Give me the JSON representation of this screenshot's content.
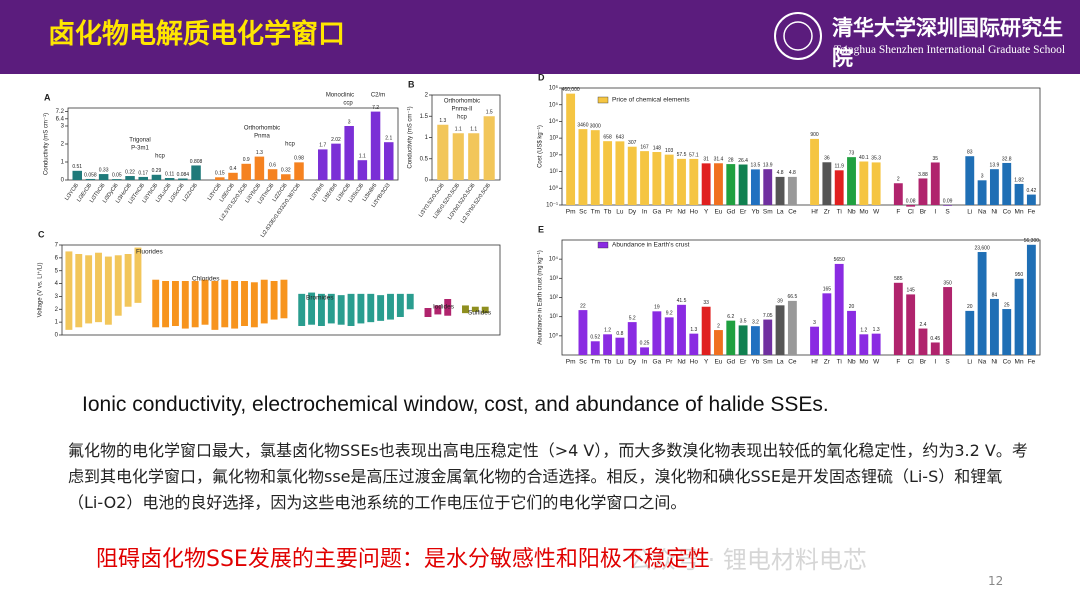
{
  "header": {
    "title": "卤化物电解质电化学窗口",
    "school_cn": "清华大学深圳国际研究生院",
    "school_en": "Tsinghua Shenzhen International Graduate School"
  },
  "chart_data": [
    {
      "type": "bar",
      "panel": "A",
      "ylabel": "Conductivity (mS cm⁻¹)",
      "categories": [
        "Li3YCl6",
        "Li3ErCl6",
        "Li3TbCl6",
        "Li3DyCl6",
        "Li3HoCl6",
        "Li3TmCl6",
        "Li3YbCl6",
        "Li3LuCl6",
        "Li3ScCl6",
        "Li2ZrCl6",
        "Li3YCl6",
        "Li3ErCl6",
        "Li2.5Y0.5Zr0.5Cl6",
        "Li3YbCl6",
        "Li3TmCl6",
        "Li2ZrCl6",
        "Li2.633Er0.633Zr0.367Cl6",
        "Li3YBr6",
        "Li3ErBr6",
        "Li3InCl6",
        "Li3ScCl6",
        "Li3InBr6",
        "Li3YBr3Cl3"
      ],
      "values": [
        0.51,
        0.058,
        0.33,
        0.05,
        0.22,
        0.17,
        0.29,
        0.11,
        0.084,
        0.808,
        0.15,
        0.4,
        0.9,
        1.3,
        0.6,
        0.32,
        0.98,
        1.7,
        2.02,
        3,
        1.1,
        7.2,
        2.1
      ],
      "colors": [
        "#1f7a7a",
        "#1f7a7a",
        "#1f7a7a",
        "#1f7a7a",
        "#1f7a7a",
        "#1f7a7a",
        "#1f7a7a",
        "#1f7a7a",
        "#1f7a7a",
        "#1f7a7a",
        "#f58220",
        "#f58220",
        "#f58220",
        "#f58220",
        "#f58220",
        "#f58220",
        "#f58220",
        "#7b2fd6",
        "#7b2fd6",
        "#7b2fd6",
        "#7b2fd6",
        "#7b2fd6",
        "#7b2fd6"
      ],
      "ylim": [
        0,
        7.6
      ],
      "ybreak": [
        3.2,
        6.4
      ],
      "yticks": [
        0,
        1,
        2,
        3,
        6.4,
        7.2
      ],
      "annotations": [
        "Trigonal",
        "P-3m1",
        "hcp",
        "Orthorhombic",
        "Pnma",
        "hcp",
        "Monoclinic",
        "C2/m",
        "ccp"
      ]
    },
    {
      "type": "bar",
      "panel": "B",
      "ylabel": "Conductivity (mS cm⁻¹)",
      "categories": [
        "Li3Y0.5Zr0.5Cl6",
        "Li3Er0.5Zr0.5Cl6",
        "Li3Yb0.5Zr0.5Cl6",
        "Li2.5Yb0.5Zr0.5Cl6"
      ],
      "values": [
        1.3,
        1.1,
        1.1,
        1.5
      ],
      "colors": [
        "#f2c65a",
        "#f2c65a",
        "#f2c65a",
        "#f2c65a"
      ],
      "ylim": [
        0,
        2
      ],
      "yticks": [
        0,
        0.5,
        1,
        1.5,
        2
      ],
      "annotations": [
        "Orthorhombic",
        "Pnma-II",
        "hcp"
      ]
    },
    {
      "type": "range_bar",
      "panel": "C",
      "ylabel": "Voltage (V vs. Li⁺/Li)",
      "ylim": [
        0,
        7
      ],
      "yticks": [
        0,
        1,
        2,
        3,
        4,
        5,
        6,
        7
      ],
      "series": [
        {
          "name": "Fluorides",
          "color": "#f2c65a",
          "values": [
            [
              0.4,
              6.5
            ],
            [
              0.6,
              6.3
            ],
            [
              0.9,
              6.2
            ],
            [
              1.0,
              6.4
            ],
            [
              0.8,
              6.1
            ],
            [
              1.5,
              6.2
            ],
            [
              2.2,
              6.3
            ],
            [
              2.5,
              6.8
            ]
          ]
        },
        {
          "name": "Chlorides",
          "color": "#f7941d",
          "values": [
            [
              0.6,
              4.3
            ],
            [
              0.6,
              4.2
            ],
            [
              0.7,
              4.2
            ],
            [
              0.5,
              4.2
            ],
            [
              0.6,
              4.2
            ],
            [
              0.8,
              4.3
            ],
            [
              0.4,
              4.2
            ],
            [
              0.6,
              4.3
            ],
            [
              0.5,
              4.2
            ],
            [
              0.7,
              4.2
            ],
            [
              0.6,
              4.1
            ],
            [
              0.9,
              4.3
            ],
            [
              1.2,
              4.2
            ],
            [
              1.3,
              4.3
            ]
          ]
        },
        {
          "name": "Bromides",
          "color": "#2a9d8f",
          "values": [
            [
              0.7,
              3.2
            ],
            [
              0.8,
              3.3
            ],
            [
              0.7,
              3.2
            ],
            [
              0.9,
              3.2
            ],
            [
              0.8,
              3.1
            ],
            [
              0.7,
              3.2
            ],
            [
              0.9,
              3.2
            ],
            [
              1.0,
              3.2
            ],
            [
              1.1,
              3.1
            ],
            [
              1.2,
              3.2
            ],
            [
              1.4,
              3.2
            ],
            [
              2.0,
              3.2
            ]
          ]
        },
        {
          "name": "Iodides",
          "color": "#b0246d",
          "values": [
            [
              1.4,
              2.1
            ],
            [
              1.6,
              2.3
            ],
            [
              1.5,
              2.8
            ]
          ]
        },
        {
          "name": "Sulfides",
          "color": "#8f8f1f",
          "values": [
            [
              1.7,
              2.3
            ],
            [
              1.8,
              2.2
            ],
            [
              1.7,
              2.2
            ]
          ]
        }
      ]
    },
    {
      "type": "bar",
      "panel": "D",
      "ylabel": "Cost (US$ kg⁻¹)",
      "log": true,
      "categories": [
        "Pm",
        "Sc",
        "Tm",
        "Tb",
        "Lu",
        "Dy",
        "In",
        "Ga",
        "Pr",
        "Nd",
        "Ho",
        "Y",
        "Eu",
        "Gd",
        "Er",
        "Yb",
        "Sm",
        "La",
        "Ce",
        "Hf",
        "Zr",
        "Ti",
        "Nb",
        "Mo",
        "W",
        "F",
        "Cl",
        "Br",
        "I",
        "S",
        "Li",
        "Na",
        "Ni",
        "Co",
        "Mn",
        "Fe"
      ],
      "ylim": [
        0.1,
        1000000
      ],
      "yticks": [
        {
          "value": 0.1,
          "label": "10⁻¹"
        },
        {
          "value": 1,
          "label": "10⁰"
        },
        {
          "value": 10,
          "label": "10¹"
        },
        {
          "value": 100,
          "label": "10²"
        },
        {
          "value": 1000,
          "label": "10³"
        },
        {
          "value": 10000,
          "label": "10⁴"
        },
        {
          "value": 100000,
          "label": "10⁵"
        },
        {
          "value": 1000000,
          "label": "10⁶"
        }
      ],
      "series": [
        {
          "name": "Price of chemical elements",
          "color": "#f5c542",
          "values": [
            460000,
            3460,
            3000,
            658,
            643,
            307,
            167,
            148,
            103,
            57.5,
            57.1,
            31,
            31.4,
            28,
            26.4,
            13.5,
            13.9,
            4.8,
            4.8,
            900,
            36,
            11.9,
            73,
            40.1,
            35.3,
            2,
            0.08,
            3.88,
            35,
            0.09,
            83,
            3,
            13.9,
            32.8,
            1.82,
            0.42
          ],
          "value_labels": [
            "460,000",
            "3460",
            "3000",
            "658",
            "643",
            "307",
            "167",
            "148",
            "103",
            "57.5",
            "57.1",
            "31",
            "31.4",
            "28",
            "26.4",
            "13.5",
            "13.9",
            "4.8",
            "4.8",
            "900",
            "36",
            "11.9",
            "73",
            "40.1",
            "35.3",
            "2",
            "0.08",
            "3.88",
            "35",
            "0.09",
            "83",
            "3",
            "13.9",
            "32.8",
            "1.82",
            "0.42"
          ],
          "colors": [
            "#f5c542",
            "#f5c542",
            "#f5c542",
            "#f5c542",
            "#f5c542",
            "#f5c542",
            "#f5c542",
            "#f5c542",
            "#f5c542",
            "#f5c542",
            "#f5c542",
            "#e02020",
            "#f07020",
            "#20a040",
            "#108050",
            "#2070c0",
            "#7030a0",
            "#555555",
            "#999999",
            "#f5c542",
            "#555555",
            "#e02020",
            "#20a040",
            "#f5c542",
            "#f5c542",
            "#b0246d",
            "#b0246d",
            "#b0246d",
            "#b0246d",
            "#7030a0",
            "#1f6fb5",
            "#1f6fb5",
            "#1f6fb5",
            "#1f6fb5",
            "#1f6fb5",
            "#1f6fb5"
          ]
        }
      ]
    },
    {
      "type": "bar",
      "panel": "E",
      "ylabel": "Abundance in Earth crust (mg kg⁻¹)",
      "log": true,
      "categories": [
        "Pm",
        "Sc",
        "Tm",
        "Tb",
        "Lu",
        "Dy",
        "In",
        "Ga",
        "Pr",
        "Nd",
        "Ho",
        "Y",
        "Eu",
        "Gd",
        "Er",
        "Yb",
        "Sm",
        "La",
        "Ce",
        "Hf",
        "Zr",
        "Ti",
        "Nb",
        "Mo",
        "W",
        "F",
        "Cl",
        "Br",
        "I",
        "S",
        "Li",
        "Na",
        "Ni",
        "Co",
        "Mn",
        "Fe"
      ],
      "ylim": [
        0.1,
        100000
      ],
      "yticks": [
        {
          "value": 1,
          "label": "10⁰"
        },
        {
          "value": 10,
          "label": "10¹"
        },
        {
          "value": 100,
          "label": "10²"
        },
        {
          "value": 1000,
          "label": "10³"
        },
        {
          "value": 10000,
          "label": "10⁴"
        }
      ],
      "series": [
        {
          "name": "Abundance in Earth's crust",
          "color": "#8a2be2",
          "values": [
            null,
            22,
            0.52,
            1.2,
            0.8,
            5.2,
            0.25,
            19,
            9.2,
            41.5,
            1.3,
            33,
            2,
            6.2,
            3.5,
            3.2,
            7.05,
            39,
            66.5,
            3,
            165,
            5650,
            20,
            1.2,
            1.3,
            585,
            145,
            2.4,
            0.45,
            350,
            20,
            23600,
            84,
            25,
            950,
            56300
          ],
          "value_labels": [
            null,
            "22",
            "0.52",
            "1.2",
            "0.8",
            "5.2",
            "0.25",
            "19",
            "9.2",
            "41.5",
            "1.3",
            "33",
            "2",
            "6.2",
            "3.5",
            "3.2",
            "7.05",
            "39",
            "66.5",
            "3",
            "165",
            "5650",
            "20",
            "1.2",
            "1.3",
            "585",
            "145",
            "2.4",
            "0.45",
            "350",
            "20",
            "23,600",
            "84",
            "25",
            "950",
            "56,300"
          ],
          "colors": [
            "#8a2be2",
            "#8a2be2",
            "#8a2be2",
            "#8a2be2",
            "#8a2be2",
            "#8a2be2",
            "#8a2be2",
            "#8a2be2",
            "#8a2be2",
            "#8a2be2",
            "#8a2be2",
            "#e02020",
            "#f07020",
            "#20a040",
            "#108050",
            "#2070c0",
            "#7030a0",
            "#555555",
            "#999999",
            "#8a2be2",
            "#8a2be2",
            "#8a2be2",
            "#8a2be2",
            "#8a2be2",
            "#8a2be2",
            "#b0246d",
            "#b0246d",
            "#b0246d",
            "#b0246d",
            "#b0246d",
            "#1f6fb5",
            "#1f6fb5",
            "#1f6fb5",
            "#1f6fb5",
            "#1f6fb5",
            "#1f6fb5"
          ]
        }
      ]
    }
  ],
  "caption": "Ionic conductivity, electrochemical window, cost, and abundance of halide SSEs.",
  "paragraph": "氟化物的电化学窗口最大，氯基卤化物SSEs也表现出高电压稳定性（>4 V），而大多数溴化物表现出较低的氧化稳定性，约为3.2 V。考虑到其电化学窗口，氟化物和氯化物sse是高压过渡金属氧化物的合适选择。相反，溴化物和碘化SSE是开发固态锂硫（Li-S）和锂氧（Li-O2）电池的良好选择，因为这些电池系统的工作电压位于它们的电化学窗口之间。",
  "highlight": "阻碍卤化物SSE发展的主要问题：是水分敏感性和阳极不稳定性",
  "watermark": "公众号 · 锂电材料电芯",
  "page_number": "12"
}
